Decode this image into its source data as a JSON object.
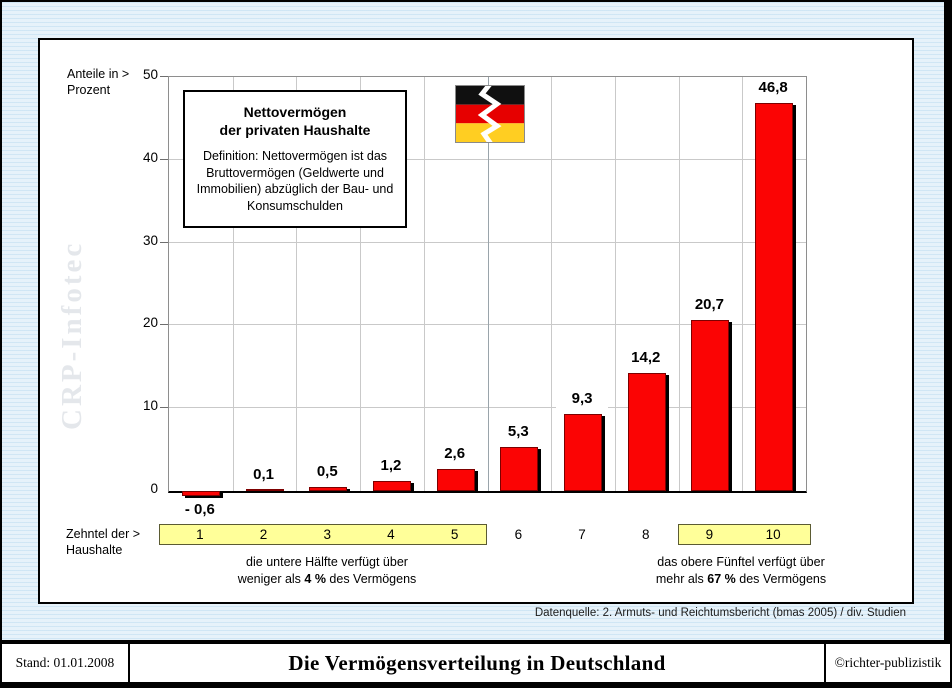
{
  "y_axis": {
    "label_line1": "Anteile in >",
    "label_line2": "Prozent"
  },
  "x_axis": {
    "label_line1": "Zehntel der >",
    "label_line2": "Haushalte"
  },
  "watermark": "CRP-Infotec",
  "info_box": {
    "title_line1": "Nettovermögen",
    "title_line2": "der privaten Haushalte",
    "definition": "Definition: Nettovermögen ist das Bruttovermögen (Geldwerte und Immobilien) abzüglich der Bau- und Konsumschulden"
  },
  "flag": {
    "name": "torn-german-flag",
    "stripe_colors": [
      "#101010",
      "#e60000",
      "#ffce22"
    ]
  },
  "chart_data": {
    "type": "bar",
    "title": "Nettovermögen der privaten Haushalte",
    "categories": [
      "1",
      "2",
      "3",
      "4",
      "5",
      "6",
      "7",
      "8",
      "9",
      "10"
    ],
    "values": [
      -0.6,
      0.1,
      0.5,
      1.2,
      2.6,
      5.3,
      9.3,
      14.2,
      20.7,
      46.8
    ],
    "value_labels": [
      "- 0,6",
      "0,1",
      "0,5",
      "1,2",
      "2,6",
      "5,3",
      "9,3",
      "14,2",
      "20,7",
      "46,8"
    ],
    "ylabel": "Anteile in Prozent",
    "xlabel": "Zehntel der Haushalte",
    "ylim": [
      0,
      50
    ],
    "yticks": [
      0,
      10,
      20,
      30,
      40,
      50
    ],
    "grid": true,
    "legend": "none",
    "bar_color": "#fb0404",
    "highlight_color": "#ffff99",
    "highlighted_category_groups": [
      [
        1,
        5
      ],
      [
        9,
        10
      ]
    ]
  },
  "annotations": {
    "left": {
      "line1": "die untere Hälfte verfügt über",
      "line2_prefix": "weniger als  ",
      "line2_bold": "4 %",
      "line2_suffix": "  des Vermögens"
    },
    "right": {
      "line1": "das obere Fünftel verfügt über",
      "line2_prefix": "mehr als  ",
      "line2_bold": "67 %",
      "line2_suffix": "  des Vermögens"
    }
  },
  "source": "Datenquelle: 2. Armuts- und Reichtumsbericht (bmas 2005) / div. Studien",
  "footer": {
    "stand": "Stand: 01.01.2008",
    "title": "Die Vermögensverteilung in Deutschland",
    "publisher": "©richter-publizistik"
  }
}
